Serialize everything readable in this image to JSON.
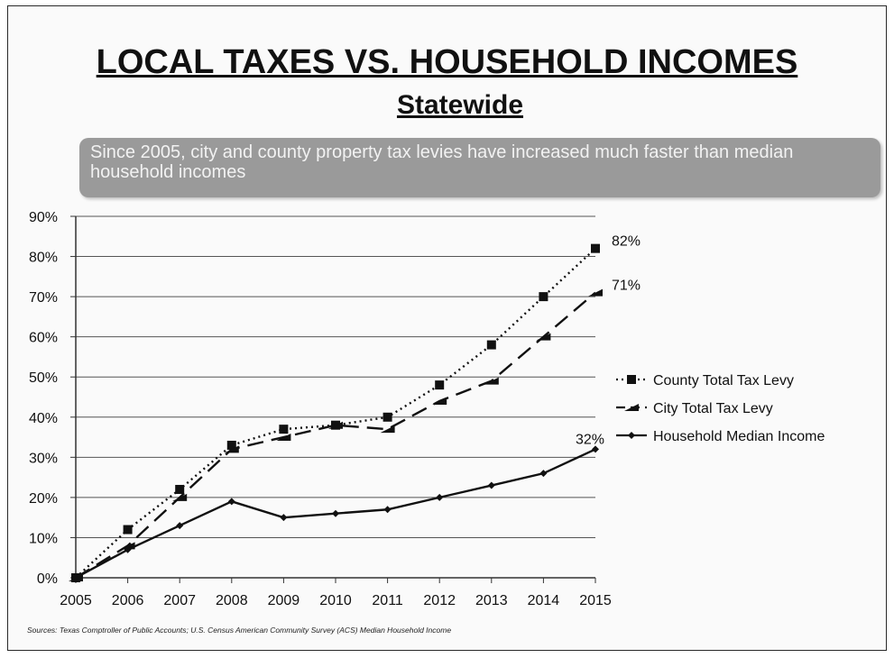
{
  "slide": {
    "title": "LOCAL TAXES VS. HOUSEHOLD INCOMES",
    "subtitle": "Statewide",
    "banner": "Since 2005, city and county property tax levies have increased much faster than median household incomes",
    "source": "Sources: Texas Comptroller of Public Accounts; U.S. Census American Community Survey (ACS) Median Household Income"
  },
  "chart_data": {
    "type": "line",
    "x": [
      "2005",
      "2006",
      "2007",
      "2008",
      "2009",
      "2010",
      "2011",
      "2012",
      "2013",
      "2014",
      "2015"
    ],
    "yticks": [
      "0%",
      "10%",
      "20%",
      "30%",
      "40%",
      "50%",
      "60%",
      "70%",
      "80%",
      "90%"
    ],
    "ylim": [
      0,
      90
    ],
    "grid": true,
    "legend_position": "right",
    "series": [
      {
        "name": "County Total Tax Levy",
        "values": [
          0,
          12,
          22,
          33,
          37,
          38,
          40,
          48,
          58,
          70,
          82
        ],
        "style": "dotted",
        "marker": "square",
        "color": "#111111"
      },
      {
        "name": "City Total Tax Levy",
        "values": [
          0,
          8,
          20,
          32,
          35,
          38,
          37,
          44,
          49,
          60,
          71
        ],
        "style": "dashed",
        "marker": "triangle",
        "color": "#111111"
      },
      {
        "name": "Household Median Income",
        "values": [
          0,
          7,
          13,
          19,
          15,
          16,
          17,
          20,
          23,
          26,
          32
        ],
        "style": "solid",
        "marker": "diamond",
        "color": "#111111"
      }
    ],
    "end_labels": [
      "82%",
      "71%",
      "32%"
    ]
  }
}
